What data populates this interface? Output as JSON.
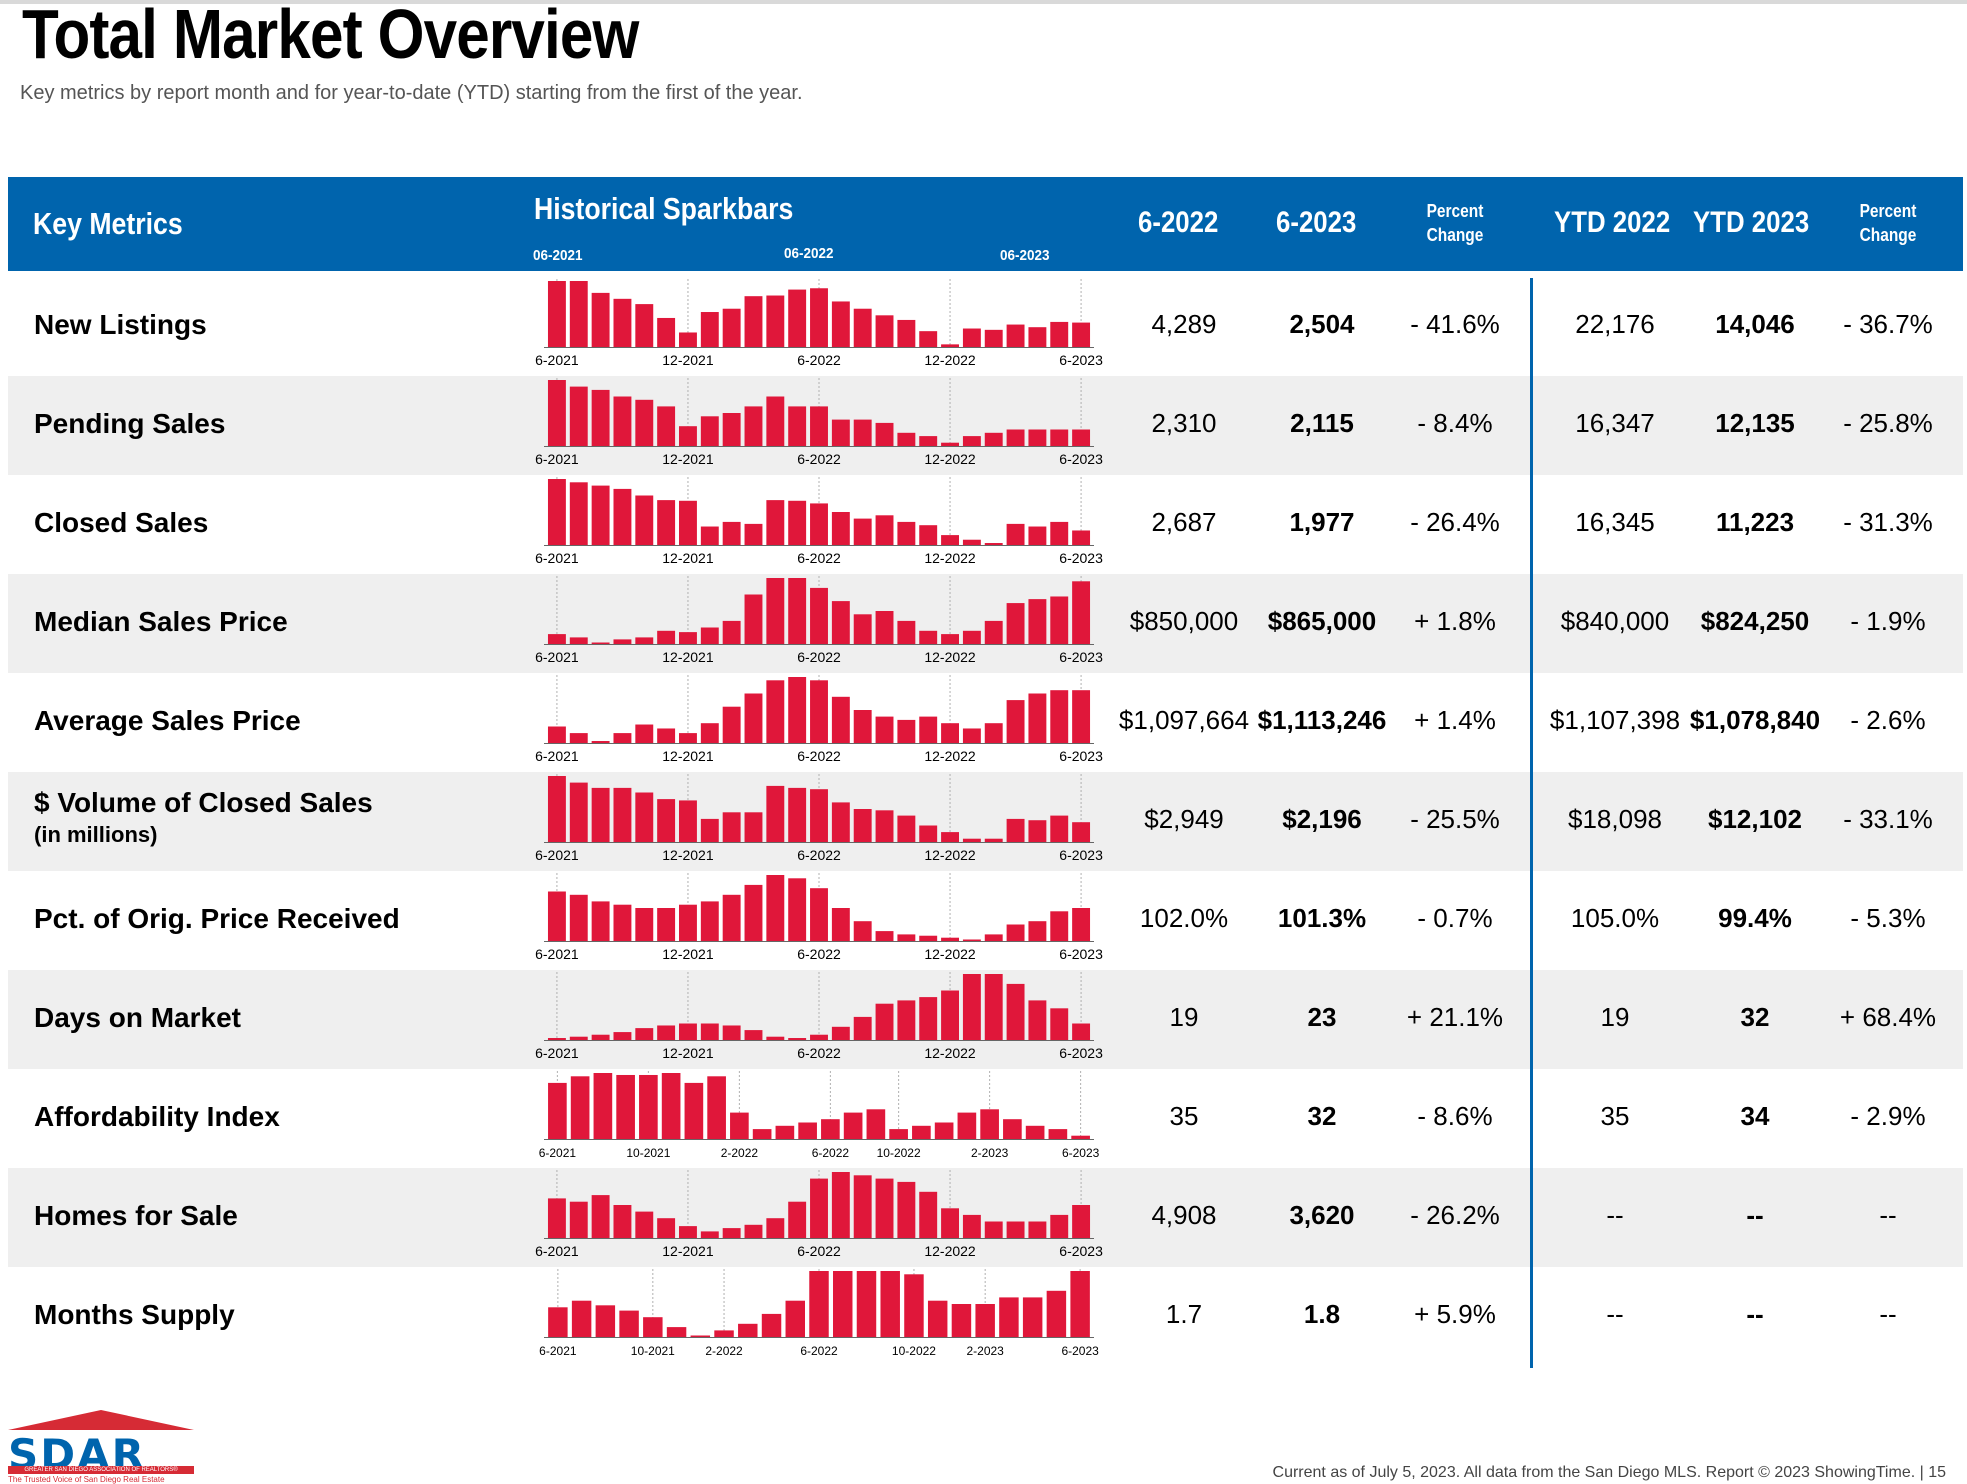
{
  "page": {
    "title": "Total Market Overview",
    "subtitle": "Key metrics by report month and for year-to-date (YTD) starting from the first of the year.",
    "footer": "Current as of July 5, 2023. All data from the San Diego MLS. Report © 2023 ShowingTime.  |  15"
  },
  "logo": {
    "word": "SDAR",
    "org": "GREATER SAN DIEGO ASSOCIATION OF REALTORS®",
    "tagline": "The Trusted Voice of San Diego Real Estate"
  },
  "header": {
    "key_metrics": "Key Metrics",
    "sparkbars": "Historical Sparkbars",
    "spark_ticks": [
      "06-2021",
      "06-2022",
      "06-2023"
    ],
    "col_6_2022": "6-2022",
    "col_6_2023": "6-2023",
    "pct_change_1": "Percent Change",
    "col_ytd_2022": "YTD 2022",
    "col_ytd_2023": "YTD 2023",
    "pct_change_2": "Percent Change"
  },
  "colors": {
    "header_bg": "#0064ad",
    "bar": "#e0173a",
    "row_alt": "#efefef",
    "divider": "#0064ad"
  },
  "chart_data": [
    {
      "type": "bar",
      "metric": "New Listings",
      "tick_labels": [
        "6-2021",
        "12-2021",
        "6-2022",
        "12-2022",
        "6-2023"
      ],
      "values": [
        100,
        100,
        82,
        73,
        65,
        44,
        22,
        53,
        58,
        77,
        78,
        87,
        89,
        69,
        58,
        48,
        41,
        24,
        4,
        28,
        26,
        34,
        30,
        38,
        37
      ],
      "cur_6_2022": "4,289",
      "cur_6_2023": "2,504",
      "pct": "- 41.6%",
      "ytd_2022": "22,176",
      "ytd_2023": "14,046",
      "ytd_pct": "- 36.7%"
    },
    {
      "type": "bar",
      "metric": "Pending Sales",
      "tick_labels": [
        "6-2021",
        "12-2021",
        "6-2022",
        "12-2022",
        "6-2023"
      ],
      "values": [
        100,
        90,
        85,
        75,
        70,
        60,
        30,
        45,
        50,
        60,
        75,
        60,
        60,
        40,
        40,
        35,
        20,
        15,
        5,
        15,
        20,
        25,
        25,
        25,
        25
      ],
      "cur_6_2022": "2,310",
      "cur_6_2023": "2,115",
      "pct": "- 8.4%",
      "ytd_2022": "16,347",
      "ytd_2023": "12,135",
      "ytd_pct": "- 25.8%"
    },
    {
      "type": "bar",
      "metric": "Closed Sales",
      "tick_labels": [
        "6-2021",
        "12-2021",
        "6-2022",
        "12-2022",
        "6-2023"
      ],
      "values": [
        100,
        95,
        90,
        85,
        75,
        68,
        67,
        28,
        35,
        32,
        68,
        67,
        63,
        50,
        40,
        45,
        35,
        30,
        15,
        8,
        3,
        32,
        28,
        35,
        22
      ],
      "cur_6_2022": "2,687",
      "cur_6_2023": "1,977",
      "pct": "- 26.4%",
      "ytd_2022": "16,345",
      "ytd_2023": "11,223",
      "ytd_pct": "- 31.3%"
    },
    {
      "type": "bar",
      "metric": "Median Sales Price",
      "tick_labels": [
        "6-2021",
        "12-2021",
        "6-2022",
        "12-2022",
        "6-2023"
      ],
      "values": [
        15,
        10,
        2,
        7,
        10,
        20,
        18,
        25,
        35,
        75,
        100,
        100,
        85,
        65,
        45,
        50,
        35,
        20,
        15,
        20,
        35,
        62,
        68,
        72,
        95
      ],
      "cur_6_2022": "$850,000",
      "cur_6_2023": "$865,000",
      "pct": "+ 1.8%",
      "ytd_2022": "$840,000",
      "ytd_2023": "$824,250",
      "ytd_pct": "- 1.9%"
    },
    {
      "type": "bar",
      "metric": "Average Sales Price",
      "tick_labels": [
        "6-2021",
        "12-2021",
        "6-2022",
        "12-2022",
        "6-2023"
      ],
      "values": [
        25,
        15,
        3,
        15,
        28,
        22,
        15,
        30,
        55,
        75,
        95,
        100,
        95,
        70,
        50,
        40,
        35,
        40,
        30,
        22,
        30,
        65,
        75,
        80,
        80
      ],
      "cur_6_2022": "$1,097,664",
      "cur_6_2023": "$1,113,246",
      "pct": "+ 1.4%",
      "ytd_2022": "$1,107,398",
      "ytd_2023": "$1,078,840",
      "ytd_pct": "- 2.6%"
    },
    {
      "type": "bar",
      "metric": "$ Volume of Closed Sales",
      "metric_sub": "(in millions)",
      "tick_labels": [
        "6-2021",
        "12-2021",
        "6-2022",
        "12-2022",
        "6-2023"
      ],
      "values": [
        100,
        90,
        82,
        82,
        75,
        65,
        63,
        35,
        45,
        45,
        85,
        82,
        80,
        60,
        50,
        48,
        40,
        25,
        15,
        5,
        5,
        35,
        33,
        40,
        30
      ],
      "cur_6_2022": "$2,949",
      "cur_6_2023": "$2,196",
      "pct": "- 25.5%",
      "ytd_2022": "$18,098",
      "ytd_2023": "$12,102",
      "ytd_pct": "- 33.1%"
    },
    {
      "type": "bar",
      "metric": "Pct. of Orig. Price Received",
      "tick_labels": [
        "6-2021",
        "12-2021",
        "6-2022",
        "12-2022",
        "6-2023"
      ],
      "values": [
        75,
        70,
        60,
        55,
        50,
        50,
        55,
        60,
        70,
        85,
        100,
        95,
        80,
        50,
        30,
        15,
        10,
        8,
        5,
        2,
        10,
        25,
        30,
        45,
        50
      ],
      "cur_6_2022": "102.0%",
      "cur_6_2023": "101.3%",
      "pct": "- 0.7%",
      "ytd_2022": "105.0%",
      "ytd_2023": "99.4%",
      "ytd_pct": "- 5.3%"
    },
    {
      "type": "bar",
      "metric": "Days on Market",
      "tick_labels": [
        "6-2021",
        "12-2021",
        "6-2022",
        "12-2022",
        "6-2023"
      ],
      "values": [
        3,
        5,
        8,
        12,
        18,
        22,
        25,
        25,
        22,
        15,
        5,
        3,
        8,
        20,
        35,
        55,
        60,
        65,
        75,
        100,
        100,
        85,
        60,
        48,
        25
      ],
      "cur_6_2022": "19",
      "cur_6_2023": "23",
      "pct": "+ 21.1%",
      "ytd_2022": "19",
      "ytd_2023": "32",
      "ytd_pct": "+ 68.4%"
    },
    {
      "type": "bar",
      "metric": "Affordability Index",
      "tick_labels": [
        "6-2021",
        "10-2021",
        "2-2022",
        "6-2022",
        "10-2022",
        "2-2023",
        "6-2023"
      ],
      "values": [
        85,
        95,
        100,
        97,
        97,
        100,
        85,
        95,
        40,
        15,
        20,
        25,
        30,
        40,
        45,
        15,
        20,
        25,
        40,
        45,
        30,
        20,
        15,
        5
      ],
      "cur_6_2022": "35",
      "cur_6_2023": "32",
      "pct": "- 8.6%",
      "ytd_2022": "35",
      "ytd_2023": "34",
      "ytd_pct": "- 2.9%"
    },
    {
      "type": "bar",
      "metric": "Homes for Sale",
      "tick_labels": [
        "6-2021",
        "12-2021",
        "6-2022",
        "12-2022",
        "6-2023"
      ],
      "values": [
        60,
        55,
        65,
        50,
        40,
        30,
        18,
        10,
        15,
        20,
        30,
        55,
        90,
        100,
        95,
        90,
        85,
        70,
        45,
        35,
        25,
        25,
        25,
        35,
        50
      ],
      "cur_6_2022": "4,908",
      "cur_6_2023": "3,620",
      "pct": "- 26.2%",
      "ytd_2022": "--",
      "ytd_2023": "--",
      "ytd_pct": "--"
    },
    {
      "type": "bar",
      "metric": "Months Supply",
      "tick_labels": [
        "6-2021",
        "10-2021",
        "2-2022",
        "6-2022",
        "10-2022",
        "2-2023",
        "6-2023"
      ],
      "values": [
        45,
        55,
        48,
        40,
        30,
        15,
        0,
        10,
        20,
        35,
        55,
        100,
        100,
        100,
        100,
        95,
        55,
        50,
        50,
        60,
        60,
        70,
        100
      ],
      "cur_6_2022": "1.7",
      "cur_6_2023": "1.8",
      "pct": "+ 5.9%",
      "ytd_2022": "--",
      "ytd_2023": "--",
      "ytd_pct": "--"
    }
  ]
}
